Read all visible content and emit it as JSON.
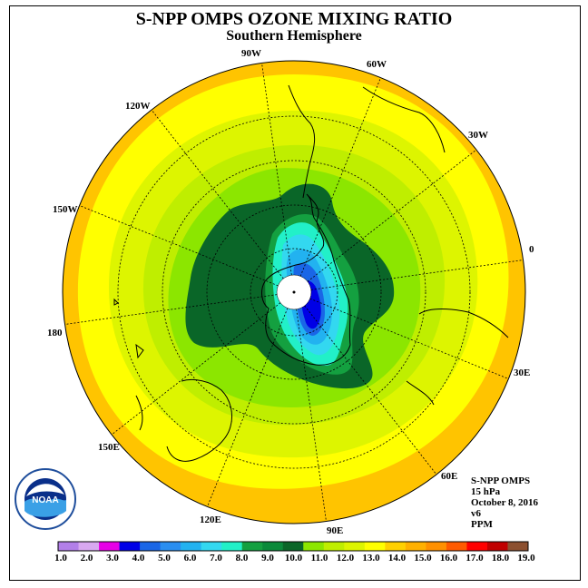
{
  "title": "S-NPP OMPS OZONE MIXING RATIO",
  "subtitle": "Southern Hemisphere",
  "lon_labels": {
    "w90": "90W",
    "w60": "60W",
    "w30": "30W",
    "e0": "0",
    "e30": "30E",
    "e60": "60E",
    "e90": "90E",
    "e120": "120E",
    "e150": "150E",
    "e180": "180",
    "w150": "150W",
    "w120": "120W"
  },
  "info": {
    "instrument": "S-NPP OMPS",
    "level": "15 hPa",
    "date": "October 8, 2016",
    "version": "v6",
    "units": "PPM"
  },
  "logo_text": "NOAA",
  "colorbar": {
    "colors": [
      "#b27fe8",
      "#d8a8f0",
      "#e600e6",
      "#0000e6",
      "#1a66e6",
      "#2a8ef0",
      "#22b2f0",
      "#33d8f0",
      "#22f0c8",
      "#14a040",
      "#0a8a3a",
      "#0a6628",
      "#8ce600",
      "#bfee00",
      "#ddf500",
      "#ffff00",
      "#ffd000",
      "#ffb000",
      "#ff9000",
      "#ff5a00",
      "#ff0000",
      "#c00000",
      "#8c5030"
    ],
    "labels": [
      "1.0",
      "2.0",
      "3.0",
      "4.0",
      "5.0",
      "6.0",
      "7.0",
      "8.0",
      "9.0",
      "10.0",
      "11.0",
      "12.0",
      "13.0",
      "14.0",
      "15.0",
      "16.0",
      "17.0",
      "18.0",
      "19.0"
    ]
  }
}
